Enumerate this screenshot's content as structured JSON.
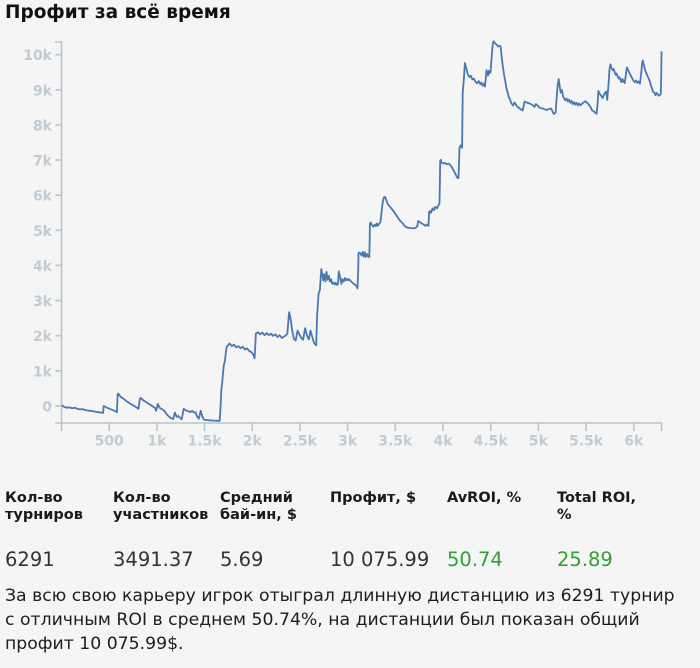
{
  "page": {
    "background": "#f4f5f4"
  },
  "title": "Профит за всё время",
  "chart_data": {
    "type": "line",
    "title": "Профит за всё время",
    "xlabel": "",
    "ylabel": "",
    "x": [
      9,
      31,
      58,
      84,
      112,
      138,
      166,
      193,
      220,
      247,
      273,
      301,
      328,
      355,
      382,
      409,
      436,
      442,
      471,
      507,
      544,
      567,
      581,
      589,
      596,
      623,
      651,
      677,
      704,
      731,
      759,
      786,
      806,
      823,
      831,
      857,
      884,
      911,
      939,
      966,
      984,
      992,
      1010,
      1029,
      1056,
      1082,
      1105,
      1144,
      1170,
      1189,
      1207,
      1225,
      1243,
      1260,
      1281,
      1305,
      1333,
      1350,
      1369,
      1387,
      1405,
      1423,
      1441,
      1459,
      1477,
      1495,
      1519,
      1551,
      1582,
      1613,
      1639,
      1658,
      1665,
      1669,
      1675,
      1685,
      1693,
      1702,
      1713,
      1724,
      1732,
      1763,
      1786,
      1809,
      1832,
      1854,
      1877,
      1900,
      1924,
      1946,
      1969,
      1992,
      2015,
      2025,
      2038,
      2060,
      2083,
      2106,
      2128,
      2151,
      2174,
      2197,
      2219,
      2242,
      2265,
      2287,
      2310,
      2333,
      2352,
      2368,
      2386,
      2403,
      2419,
      2437,
      2456,
      2476,
      2497,
      2514,
      2533,
      2554,
      2574,
      2593,
      2611,
      2632,
      2652,
      2671,
      2680,
      2696,
      2709,
      2724,
      2731,
      2744,
      2755,
      2767,
      2779,
      2791,
      2804,
      2815,
      2828,
      2839,
      2851,
      2863,
      2875,
      2887,
      2899,
      2907,
      2923,
      2935,
      2943,
      2959,
      2971,
      2983,
      2995,
      3007,
      3018,
      3037,
      3055,
      3073,
      3091,
      3104,
      3111,
      3114,
      3117,
      3131,
      3147,
      3159,
      3169,
      3181,
      3191,
      3203,
      3215,
      3227,
      3231,
      3234,
      3243,
      3252,
      3269,
      3284,
      3296,
      3306,
      3318,
      3328,
      3344,
      3358,
      3367,
      3379,
      3393,
      3422,
      3455,
      3488,
      3521,
      3543,
      3580,
      3599,
      3627,
      3655,
      3684,
      3712,
      3731,
      3740,
      3759,
      3778,
      3797,
      3816,
      3834,
      3848,
      3854,
      3862,
      3875,
      3890,
      3906,
      3918,
      3937,
      3951,
      3963,
      3968,
      3971,
      3976,
      3984,
      4003,
      4022,
      4041,
      4060,
      4079,
      4097,
      4116,
      4135,
      4150,
      4163,
      4173,
      4182,
      4200,
      4203,
      4207,
      4218,
      4230,
      4243,
      4259,
      4276,
      4291,
      4308,
      4325,
      4340,
      4357,
      4374,
      4391,
      4402,
      4415,
      4428,
      4440,
      4456,
      4472,
      4481,
      4489,
      4498,
      4510,
      4520,
      4530,
      4547,
      4564,
      4579,
      4596,
      4605,
      4613,
      4621,
      4629,
      4642,
      4654,
      4665,
      4678,
      4691,
      4703,
      4715,
      4735,
      4751,
      4777,
      4804,
      4835,
      4856,
      4877,
      4908,
      4939,
      4960,
      4974,
      4992,
      5010,
      5031,
      5051,
      5071,
      5092,
      5113,
      5135,
      5161,
      5181,
      5190,
      5199,
      5212,
      5234,
      5247,
      5261,
      5281,
      5295,
      5307,
      5322,
      5335,
      5348,
      5361,
      5375,
      5388,
      5401,
      5414,
      5427,
      5441,
      5454,
      5473,
      5492,
      5511,
      5530,
      5548,
      5561,
      5582,
      5604,
      5610,
      5620,
      5629,
      5642,
      5654,
      5667,
      5673,
      5686,
      5698,
      5710,
      5722,
      5735,
      5745,
      5755,
      5768,
      5781,
      5789,
      5803,
      5811,
      5820,
      5833,
      5842,
      5850,
      5863,
      5872,
      5881,
      5893,
      5905,
      5916,
      5928,
      5940,
      5948,
      5960,
      5977,
      5995,
      6012,
      6024,
      6037,
      6050,
      6064,
      6076,
      6089,
      6095,
      6118,
      6137,
      6154,
      6172,
      6186,
      6203,
      6220,
      6227,
      6240,
      6251,
      6264,
      6276,
      6284,
      6289,
      6291
    ],
    "y": [
      9,
      -28,
      -48,
      -40,
      -63,
      -48,
      -80,
      -97,
      -88,
      -114,
      -128,
      -137,
      -148,
      -162,
      -176,
      -185,
      -196,
      3,
      -40,
      -83,
      -122,
      -154,
      -176,
      339,
      353,
      253,
      205,
      145,
      97,
      48,
      9,
      -40,
      -80,
      216,
      231,
      165,
      117,
      68,
      20,
      -28,
      -63,
      -137,
      57,
      -48,
      -97,
      -148,
      -242,
      -344,
      -373,
      -185,
      -307,
      -285,
      -344,
      -373,
      -80,
      -128,
      -148,
      -176,
      -137,
      -185,
      -176,
      -307,
      -359,
      -137,
      -307,
      -393,
      -398,
      -407,
      -413,
      -416,
      -421,
      -421,
      -171,
      57,
      455,
      646,
      939,
      1158,
      1281,
      1537,
      1688,
      1779,
      1705,
      1748,
      1668,
      1705,
      1642,
      1688,
      1605,
      1642,
      1563,
      1531,
      1440,
      1358,
      2063,
      2100,
      2041,
      2089,
      2015,
      2078,
      2015,
      2058,
      1995,
      2041,
      1964,
      2015,
      1935,
      1978,
      2007,
      2055,
      2673,
      2462,
      2146,
      1913,
      1864,
      2146,
      2026,
      1935,
      1884,
      2217,
      2004,
      1898,
      2146,
      1935,
      1773,
      1725,
      2567,
      3199,
      3304,
      3899,
      3802,
      3575,
      3754,
      3541,
      3817,
      3589,
      3703,
      3541,
      3606,
      3475,
      3509,
      3461,
      3509,
      3444,
      3475,
      3834,
      3640,
      3475,
      3606,
      3541,
      3640,
      3575,
      3623,
      3575,
      3606,
      3541,
      3492,
      3461,
      3415,
      3350,
      3842,
      4340,
      4369,
      4357,
      4281,
      4386,
      4252,
      4372,
      4238,
      4326,
      4255,
      4241,
      4725,
      5191,
      5223,
      5163,
      5103,
      5163,
      5117,
      5191,
      5132,
      5177,
      5237,
      5578,
      5775,
      5934,
      5951,
      5744,
      5638,
      5519,
      5385,
      5297,
      5194,
      5117,
      5075,
      5066,
      5055,
      5066,
      5117,
      5268,
      5228,
      5194,
      5169,
      5126,
      5169,
      5126,
      5522,
      5550,
      5499,
      5627,
      5576,
      5670,
      5627,
      5704,
      5778,
      6375,
      6967,
      7007,
      6930,
      6905,
      6916,
      6879,
      6896,
      6854,
      6780,
      6677,
      6575,
      6498,
      6486,
      7340,
      7417,
      7352,
      8137,
      8914,
      9278,
      9762,
      9620,
      9449,
      9361,
      9404,
      9293,
      9315,
      9227,
      9182,
      9247,
      9159,
      9204,
      9113,
      9182,
      9091,
      9560,
      9404,
      9540,
      9472,
      9495,
      9905,
      10275,
      10380,
      10320,
      10278,
      10232,
      10255,
      10209,
      9987,
      9808,
      9629,
      9404,
      9227,
      9048,
      8914,
      8780,
      8735,
      8624,
      8553,
      8638,
      8524,
      8467,
      8410,
      8667,
      8638,
      8610,
      8567,
      8510,
      8595,
      8553,
      8496,
      8476,
      8459,
      8439,
      8425,
      8453,
      8467,
      8311,
      8353,
      8709,
      9051,
      9307,
      8920,
      8994,
      8792,
      8701,
      8755,
      8667,
      8721,
      8630,
      8684,
      8593,
      8647,
      8575,
      8630,
      8556,
      8612,
      8556,
      8593,
      8638,
      8675,
      8630,
      8575,
      8507,
      8422,
      8382,
      8336,
      8319,
      8567,
      8965,
      8894,
      8846,
      8795,
      8760,
      8852,
      8914,
      8948,
      8712,
      9136,
      9563,
      9725,
      9614,
      9557,
      9592,
      9475,
      9426,
      9463,
      9370,
      9321,
      9358,
      9264,
      9216,
      9310,
      9236,
      9193,
      9392,
      9640,
      9563,
      9520,
      9452,
      9358,
      9264,
      9216,
      9264,
      9199,
      9239,
      9173,
      9421,
      9779,
      9833,
      9569,
      9438,
      9338,
      9204,
      9074,
      8943,
      8908,
      8843,
      8908,
      8874,
      8829,
      8854,
      8880,
      9563,
      10076
    ],
    "xlim": [
      0,
      6291
    ],
    "ylim": [
      -484,
      10360
    ],
    "x_tick_values": [
      500,
      1000,
      1500,
      2000,
      2500,
      3000,
      3500,
      4000,
      4500,
      5000,
      5500,
      6000
    ],
    "x_tick_labels": [
      "500",
      "1k",
      "1.5k",
      "2k",
      "2.5k",
      "3k",
      "3.5k",
      "4k",
      "4.5k",
      "5k",
      "5.5k",
      "6k"
    ],
    "y_tick_values": [
      0,
      1000,
      2000,
      3000,
      4000,
      5000,
      6000,
      7000,
      8000,
      9000,
      10000
    ],
    "y_tick_labels": [
      "0",
      "1k",
      "2k",
      "3k",
      "4k",
      "5k",
      "6k",
      "7k",
      "8k",
      "9k",
      "10k"
    ],
    "grid": false,
    "legend_position": "none",
    "line_color": "#4a78b0",
    "axis_color": "#b9c5cc",
    "tick_label_color": "#c0cbd3"
  },
  "stats": {
    "columns": [
      {
        "label": "Кол-во турниров",
        "value": "6291",
        "color": "#333333"
      },
      {
        "label": "Кол-во участников",
        "value": "3491.37",
        "color": "#333333"
      },
      {
        "label": "Средний бай-ин, $",
        "value": "5.69",
        "color": "#333333"
      },
      {
        "label": "Профит, $",
        "value": "10 075.99",
        "color": "#333333"
      },
      {
        "label": "AvROI, %",
        "value": "50.74",
        "color": "#31a131"
      },
      {
        "label": "Total ROI, %",
        "value": "25.89",
        "color": "#31a131"
      }
    ]
  },
  "summary": "За всю свою карьеру игрок отыграл длинную дистанцию из 6291 турнир с отличным ROI в среднем 50.74%, на дистанции был показан общий профит 10 075.99$."
}
